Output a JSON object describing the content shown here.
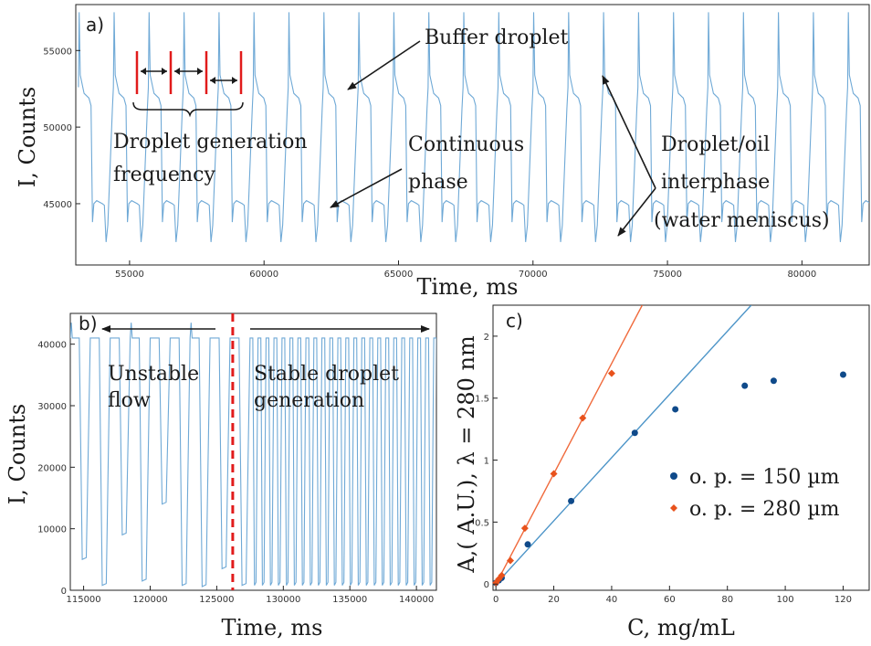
{
  "colors": {
    "trace": "#6fa9d6",
    "series150": "#0f4a8a",
    "series280": "#e8521c",
    "fit150": "#4d95c8",
    "fit280": "#f06a3c",
    "divider": "#e11b1b",
    "bracket": "#e11b1b"
  },
  "chart_data": [
    {
      "type": "line",
      "panel": "a)",
      "xlabel": "Time, ms",
      "ylabel": "I, Counts",
      "xlim": [
        53000,
        82500
      ],
      "ylim": [
        41000,
        58000
      ],
      "xticks": [
        55000,
        60000,
        65000,
        70000,
        75000,
        80000
      ],
      "yticks": [
        45000,
        50000,
        55000
      ],
      "series": [
        {
          "period_ms": 1300,
          "start_ms": 53100,
          "peak": 57500,
          "buffer_level": 52200,
          "continuous_level": 45000,
          "meniscus_min": 42000
        }
      ],
      "annotations": {
        "buffer": "Buffer droplet",
        "freq_line1": "Droplet generation",
        "freq_line2": "frequency",
        "cont_line1": "Continuous",
        "cont_line2": "phase",
        "inter_line1": "Droplet/oil",
        "inter_line2": "interphase",
        "inter_line3": "(water meniscus)"
      }
    },
    {
      "type": "line",
      "panel": "b)",
      "xlabel": "Time, ms",
      "ylabel": "I, Counts",
      "xlim": [
        114000,
        141500
      ],
      "ylim": [
        0,
        45000
      ],
      "xticks": [
        115000,
        120000,
        125000,
        130000,
        135000,
        140000
      ],
      "yticks": [
        0,
        10000,
        20000,
        30000,
        40000
      ],
      "divider_x": 126200,
      "series": [
        {
          "unstable_period_ms": 1500,
          "stable_period_ms": 600,
          "high": 41000,
          "low": 800
        }
      ],
      "annotations": {
        "unstable_line1": "Unstable",
        "unstable_line2": "flow",
        "stable_line1": "Stable droplet",
        "stable_line2": "generation"
      }
    },
    {
      "type": "scatter",
      "panel": "c)",
      "xlabel": "C, mg/mL",
      "ylabel": "A,( A.U.), λ = 280 nm",
      "xlim": [
        -1,
        129
      ],
      "ylim": [
        -0.05,
        2.25
      ],
      "xticks": [
        0,
        20,
        40,
        60,
        80,
        100,
        120
      ],
      "yticks": [
        0,
        0.5,
        1,
        1.5,
        2
      ],
      "series": [
        {
          "name": "o. p. = 150 µm",
          "x": [
            0,
            1,
            2,
            11,
            26,
            48,
            62,
            86,
            96,
            120
          ],
          "y": [
            0.01,
            0.03,
            0.05,
            0.32,
            0.67,
            1.22,
            1.41,
            1.6,
            1.64,
            1.69
          ],
          "fit_slope": 0.0255
        },
        {
          "name": "o. p. = 280 µm",
          "x": [
            0,
            1,
            2,
            5,
            10,
            20,
            30,
            40
          ],
          "y": [
            0.01,
            0.04,
            0.07,
            0.19,
            0.45,
            0.89,
            1.34,
            1.7
          ],
          "fit_slope": 0.0445
        }
      ]
    }
  ]
}
